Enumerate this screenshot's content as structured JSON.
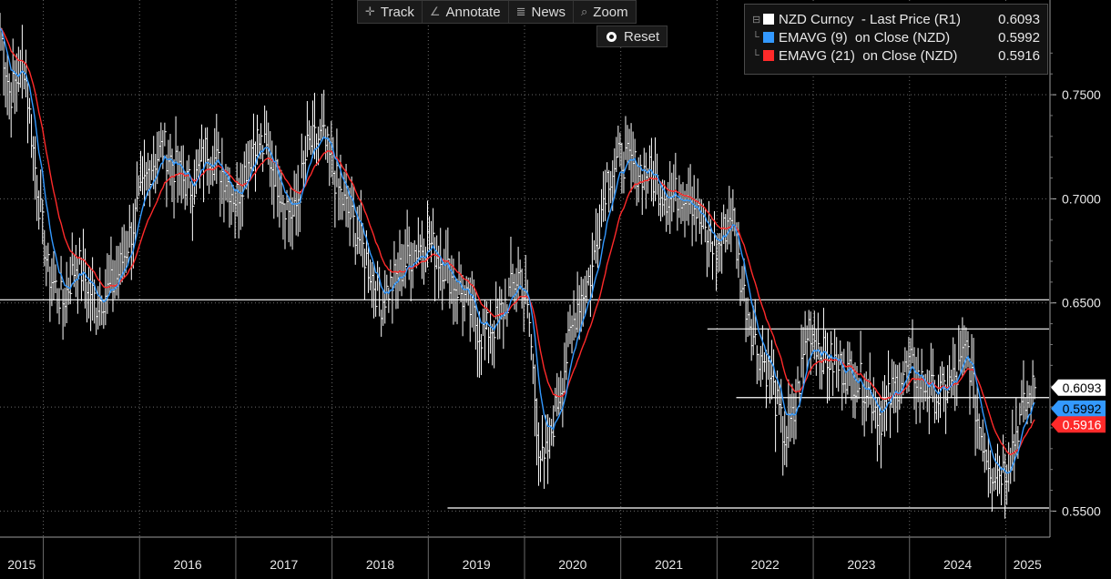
{
  "toolbar": {
    "track_label": "Track",
    "annotate_label": "Annotate",
    "news_label": "News",
    "zoom_label": "Zoom",
    "reset_label": "Reset"
  },
  "legend": {
    "items": [
      {
        "name": "NZD Curncy  - Last Price (R1)",
        "value": "0.6093",
        "color": "#ffffff"
      },
      {
        "name": "EMAVG (9)  on Close (NZD)",
        "value": "0.5992",
        "color": "#3399ff"
      },
      {
        "name": "EMAVG (21)  on Close (NZD)",
        "value": "0.5916",
        "color": "#ff2a2a"
      }
    ]
  },
  "chart_data": {
    "type": "line",
    "y_axis_side": "right",
    "ylim": [
      0.5375,
      0.7955
    ],
    "yticks": [
      0.55,
      0.6,
      0.65,
      0.7,
      0.75
    ],
    "ytick_labels": [
      "0.5500",
      "",
      "0.6500",
      "0.7000",
      "0.7500"
    ],
    "xlim": [
      2014.55,
      2025.45
    ],
    "year_labels": [
      "2015",
      "2016",
      "2017",
      "2018",
      "2019",
      "2020",
      "2021",
      "2022",
      "2023",
      "2024",
      "2025"
    ],
    "grid": true,
    "last_value_labels": [
      {
        "text": "0.6093",
        "value": 0.6093,
        "bg": "#ffffff",
        "fg": "#000000"
      },
      {
        "text": "0.5992",
        "value": 0.5992,
        "bg": "#3399ff",
        "fg": "#000000"
      },
      {
        "text": "0.5916",
        "value": 0.5916,
        "bg": "#ff2a2a",
        "fg": "#ffffff"
      }
    ],
    "horizontal_lines": [
      {
        "y": 0.6515,
        "x_start": 2014.55
      },
      {
        "y": 0.6375,
        "x_start": 2021.9
      },
      {
        "y": 0.6045,
        "x_start": 2022.2
      },
      {
        "y": 0.5515,
        "x_start": 2019.2
      }
    ],
    "series": [
      {
        "name": "NZD Curncy  - Last Price (R1)",
        "color": "#ffffff",
        "style": "bars"
      },
      {
        "name": "EMAVG (9)  on Close (NZD)",
        "color": "#3399ff"
      },
      {
        "name": "EMAVG (21)  on Close (NZD)",
        "color": "#ff2a2a"
      }
    ],
    "price_keypoints": [
      [
        2014.55,
        0.782
      ],
      [
        2014.65,
        0.75
      ],
      [
        2014.8,
        0.765
      ],
      [
        2014.95,
        0.7
      ],
      [
        2015.05,
        0.665
      ],
      [
        2015.2,
        0.65
      ],
      [
        2015.35,
        0.67
      ],
      [
        2015.55,
        0.65
      ],
      [
        2015.75,
        0.66
      ],
      [
        2015.95,
        0.69
      ],
      [
        2016.1,
        0.715
      ],
      [
        2016.25,
        0.725
      ],
      [
        2016.4,
        0.712
      ],
      [
        2016.55,
        0.705
      ],
      [
        2016.7,
        0.725
      ],
      [
        2016.9,
        0.71
      ],
      [
        2017.0,
        0.7
      ],
      [
        2017.2,
        0.73
      ],
      [
        2017.35,
        0.72
      ],
      [
        2017.5,
        0.7
      ],
      [
        2017.6,
        0.69
      ],
      [
        2017.75,
        0.725
      ],
      [
        2017.9,
        0.73
      ],
      [
        2018.0,
        0.715
      ],
      [
        2018.1,
        0.7
      ],
      [
        2018.25,
        0.685
      ],
      [
        2018.4,
        0.665
      ],
      [
        2018.5,
        0.65
      ],
      [
        2018.7,
        0.665
      ],
      [
        2018.85,
        0.675
      ],
      [
        2019.0,
        0.68
      ],
      [
        2019.2,
        0.665
      ],
      [
        2019.4,
        0.65
      ],
      [
        2019.55,
        0.635
      ],
      [
        2019.7,
        0.64
      ],
      [
        2019.85,
        0.655
      ],
      [
        2019.95,
        0.665
      ],
      [
        2020.05,
        0.64
      ],
      [
        2020.15,
        0.58
      ],
      [
        2020.2,
        0.57
      ],
      [
        2020.35,
        0.605
      ],
      [
        2020.55,
        0.65
      ],
      [
        2020.7,
        0.665
      ],
      [
        2020.85,
        0.71
      ],
      [
        2021.0,
        0.72
      ],
      [
        2021.15,
        0.715
      ],
      [
        2021.3,
        0.712
      ],
      [
        2021.5,
        0.7
      ],
      [
        2021.7,
        0.705
      ],
      [
        2021.85,
        0.685
      ],
      [
        2022.0,
        0.675
      ],
      [
        2022.15,
        0.695
      ],
      [
        2022.25,
        0.66
      ],
      [
        2022.4,
        0.63
      ],
      [
        2022.55,
        0.615
      ],
      [
        2022.7,
        0.585
      ],
      [
        2022.8,
        0.595
      ],
      [
        2022.95,
        0.64
      ],
      [
        2023.1,
        0.625
      ],
      [
        2023.25,
        0.62
      ],
      [
        2023.4,
        0.615
      ],
      [
        2023.55,
        0.61
      ],
      [
        2023.7,
        0.595
      ],
      [
        2023.85,
        0.61
      ],
      [
        2024.0,
        0.62
      ],
      [
        2024.15,
        0.61
      ],
      [
        2024.3,
        0.605
      ],
      [
        2024.5,
        0.615
      ],
      [
        2024.6,
        0.63
      ],
      [
        2024.7,
        0.595
      ],
      [
        2024.85,
        0.57
      ],
      [
        2025.0,
        0.57
      ],
      [
        2025.15,
        0.595
      ],
      [
        2025.3,
        0.6093
      ]
    ]
  }
}
